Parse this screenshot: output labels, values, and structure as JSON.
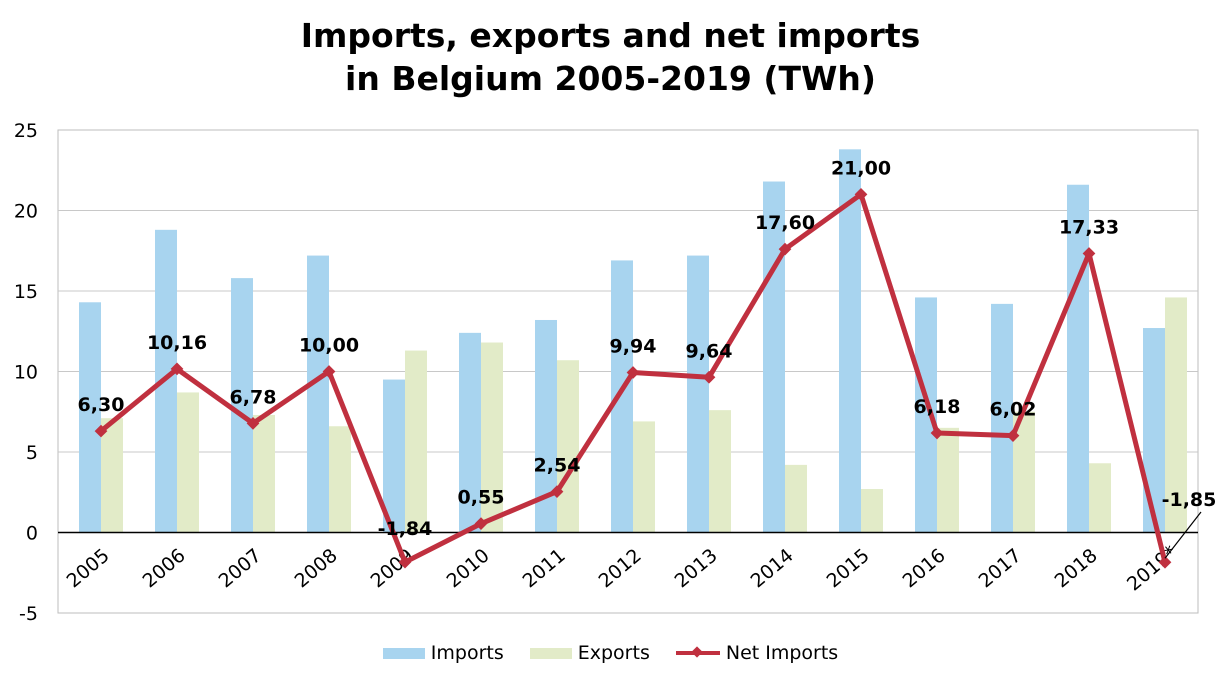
{
  "chart_data": {
    "type": "bar",
    "title_lines": [
      "Imports, exports and net imports",
      "in Belgium 2005-2019 (TWh)"
    ],
    "categories": [
      "2005",
      "2006",
      "2007",
      "2008",
      "2009",
      "2010",
      "2011",
      "2012",
      "2013",
      "2014",
      "2015",
      "2016",
      "2017",
      "2018",
      "2019*"
    ],
    "series": [
      {
        "name": "Imports",
        "kind": "bar",
        "color": "#a8d4ef",
        "values": [
          14.3,
          18.8,
          15.8,
          17.2,
          9.5,
          12.4,
          13.2,
          16.9,
          17.2,
          21.8,
          23.8,
          14.6,
          14.2,
          21.6,
          12.7
        ]
      },
      {
        "name": "Exports",
        "kind": "bar",
        "color": "#e2ebc8",
        "values": [
          7.1,
          8.7,
          7.3,
          6.6,
          11.3,
          11.8,
          10.7,
          6.9,
          7.6,
          4.2,
          2.7,
          6.5,
          7.5,
          4.3,
          14.6
        ]
      },
      {
        "name": "Net Imports",
        "kind": "line",
        "color": "#c0303f",
        "values": [
          6.3,
          10.16,
          6.78,
          10.0,
          -1.84,
          0.55,
          2.54,
          9.94,
          9.64,
          17.6,
          21.0,
          6.18,
          6.02,
          17.33,
          -1.85
        ],
        "labels": [
          "6,30",
          "10,16",
          "6,78",
          "10,00",
          "-1,84",
          "0,55",
          "2,54",
          "9,94",
          "9,64",
          "17,60",
          "21,00",
          "6,18",
          "6,02",
          "17,33",
          "-1,85"
        ]
      }
    ],
    "ylim": [
      -5,
      25
    ],
    "yticks": [
      "-5",
      "0",
      "5",
      "10",
      "15",
      "20",
      "25"
    ],
    "grid": true,
    "legend_position": "bottom"
  }
}
